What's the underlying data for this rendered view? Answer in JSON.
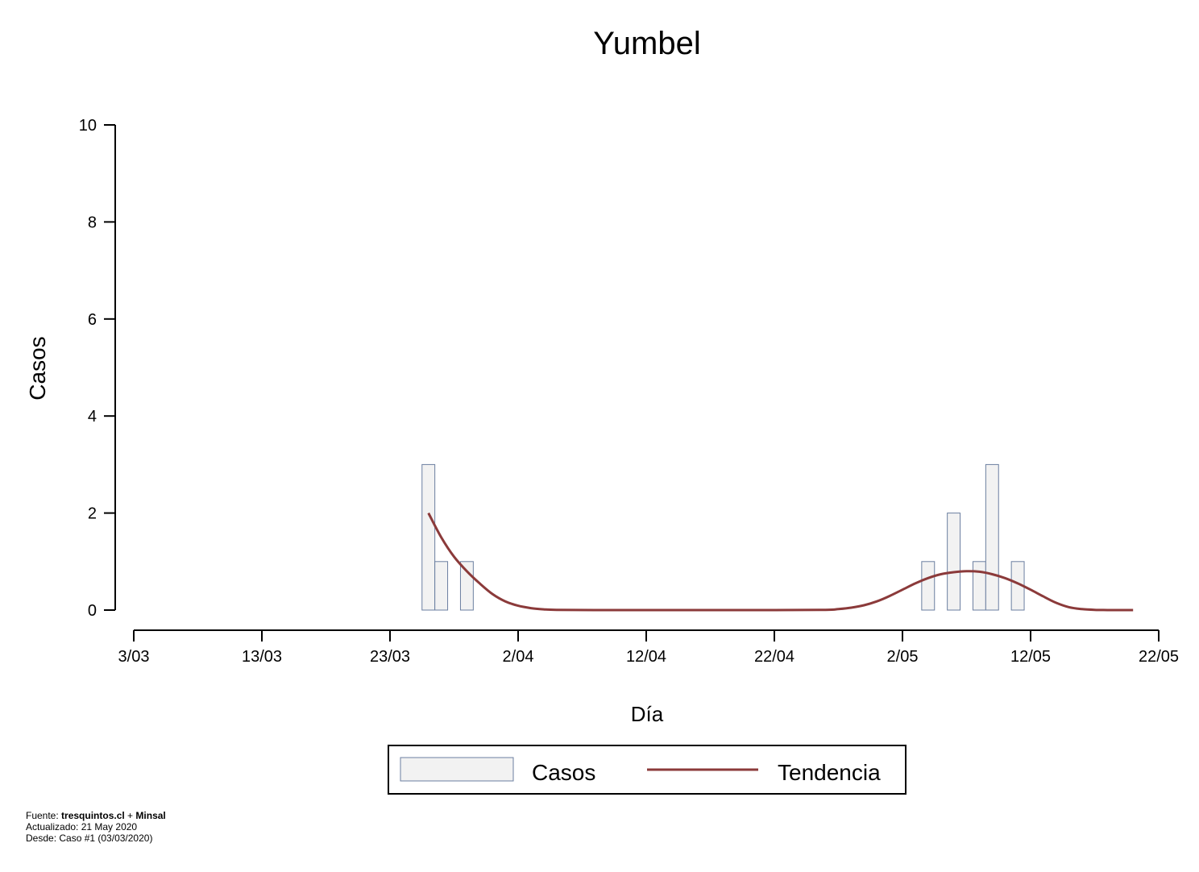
{
  "chart_data": {
    "type": "bar",
    "title": "Yumbel",
    "xlabel": "Día",
    "ylabel": "Casos",
    "ylim": [
      0,
      10
    ],
    "yticks": [
      0,
      2,
      4,
      6,
      8,
      10
    ],
    "xlim": [
      "2020-03-03",
      "2020-05-22"
    ],
    "xtick_labels": [
      "3/03",
      "13/03",
      "23/03",
      "2/04",
      "12/04",
      "22/04",
      "2/05",
      "12/05",
      "22/05"
    ],
    "xtick_dates": [
      "2020-03-03",
      "2020-03-13",
      "2020-03-23",
      "2020-04-02",
      "2020-04-12",
      "2020-04-22",
      "2020-05-02",
      "2020-05-12",
      "2020-05-22"
    ],
    "grid": false,
    "legend": "bottom",
    "series": [
      {
        "name": "Casos",
        "kind": "bar",
        "color": "#f2f2f2",
        "edge_color": "#6b7fa0",
        "points": [
          {
            "x": "2020-03-26",
            "y": 3
          },
          {
            "x": "2020-03-27",
            "y": 1
          },
          {
            "x": "2020-03-29",
            "y": 1
          },
          {
            "x": "2020-05-04",
            "y": 1
          },
          {
            "x": "2020-05-06",
            "y": 2
          },
          {
            "x": "2020-05-08",
            "y": 1
          },
          {
            "x": "2020-05-09",
            "y": 3
          },
          {
            "x": "2020-05-11",
            "y": 1
          }
        ]
      },
      {
        "name": "Tendencia",
        "kind": "line",
        "color": "#8b3a3a",
        "points": [
          {
            "x": "2020-03-26",
            "y": 2.0
          },
          {
            "x": "2020-03-27",
            "y": 1.5
          },
          {
            "x": "2020-03-28",
            "y": 1.1
          },
          {
            "x": "2020-03-29",
            "y": 0.8
          },
          {
            "x": "2020-03-30",
            "y": 0.55
          },
          {
            "x": "2020-03-31",
            "y": 0.33
          },
          {
            "x": "2020-04-01",
            "y": 0.18
          },
          {
            "x": "2020-04-02",
            "y": 0.09
          },
          {
            "x": "2020-04-03",
            "y": 0.04
          },
          {
            "x": "2020-04-04",
            "y": 0.015
          },
          {
            "x": "2020-04-05",
            "y": 0.005
          },
          {
            "x": "2020-04-08",
            "y": 0
          },
          {
            "x": "2020-04-15",
            "y": 0
          },
          {
            "x": "2020-04-22",
            "y": 0
          },
          {
            "x": "2020-04-26",
            "y": 0.005
          },
          {
            "x": "2020-04-27",
            "y": 0.02
          },
          {
            "x": "2020-04-28",
            "y": 0.05
          },
          {
            "x": "2020-04-29",
            "y": 0.1
          },
          {
            "x": "2020-04-30",
            "y": 0.18
          },
          {
            "x": "2020-05-01",
            "y": 0.29
          },
          {
            "x": "2020-05-02",
            "y": 0.42
          },
          {
            "x": "2020-05-03",
            "y": 0.55
          },
          {
            "x": "2020-05-04",
            "y": 0.66
          },
          {
            "x": "2020-05-05",
            "y": 0.74
          },
          {
            "x": "2020-05-06",
            "y": 0.78
          },
          {
            "x": "2020-05-07",
            "y": 0.8
          },
          {
            "x": "2020-05-08",
            "y": 0.79
          },
          {
            "x": "2020-05-09",
            "y": 0.74
          },
          {
            "x": "2020-05-10",
            "y": 0.66
          },
          {
            "x": "2020-05-11",
            "y": 0.55
          },
          {
            "x": "2020-05-12",
            "y": 0.42
          },
          {
            "x": "2020-05-13",
            "y": 0.28
          },
          {
            "x": "2020-05-14",
            "y": 0.15
          },
          {
            "x": "2020-05-15",
            "y": 0.06
          },
          {
            "x": "2020-05-16",
            "y": 0.02
          },
          {
            "x": "2020-05-17",
            "y": 0.005
          },
          {
            "x": "2020-05-18",
            "y": 0
          },
          {
            "x": "2020-05-19",
            "y": 0
          },
          {
            "x": "2020-05-20",
            "y": 0
          }
        ]
      }
    ]
  },
  "footer": {
    "source_prefix": "Fuente: ",
    "source_site": "tresquintos.cl",
    "source_sep": " + ",
    "source_org": "Minsal",
    "updated": "Actualizado: 21 May 2020",
    "since": "Desde: Caso #1  (03/03/2020)"
  }
}
